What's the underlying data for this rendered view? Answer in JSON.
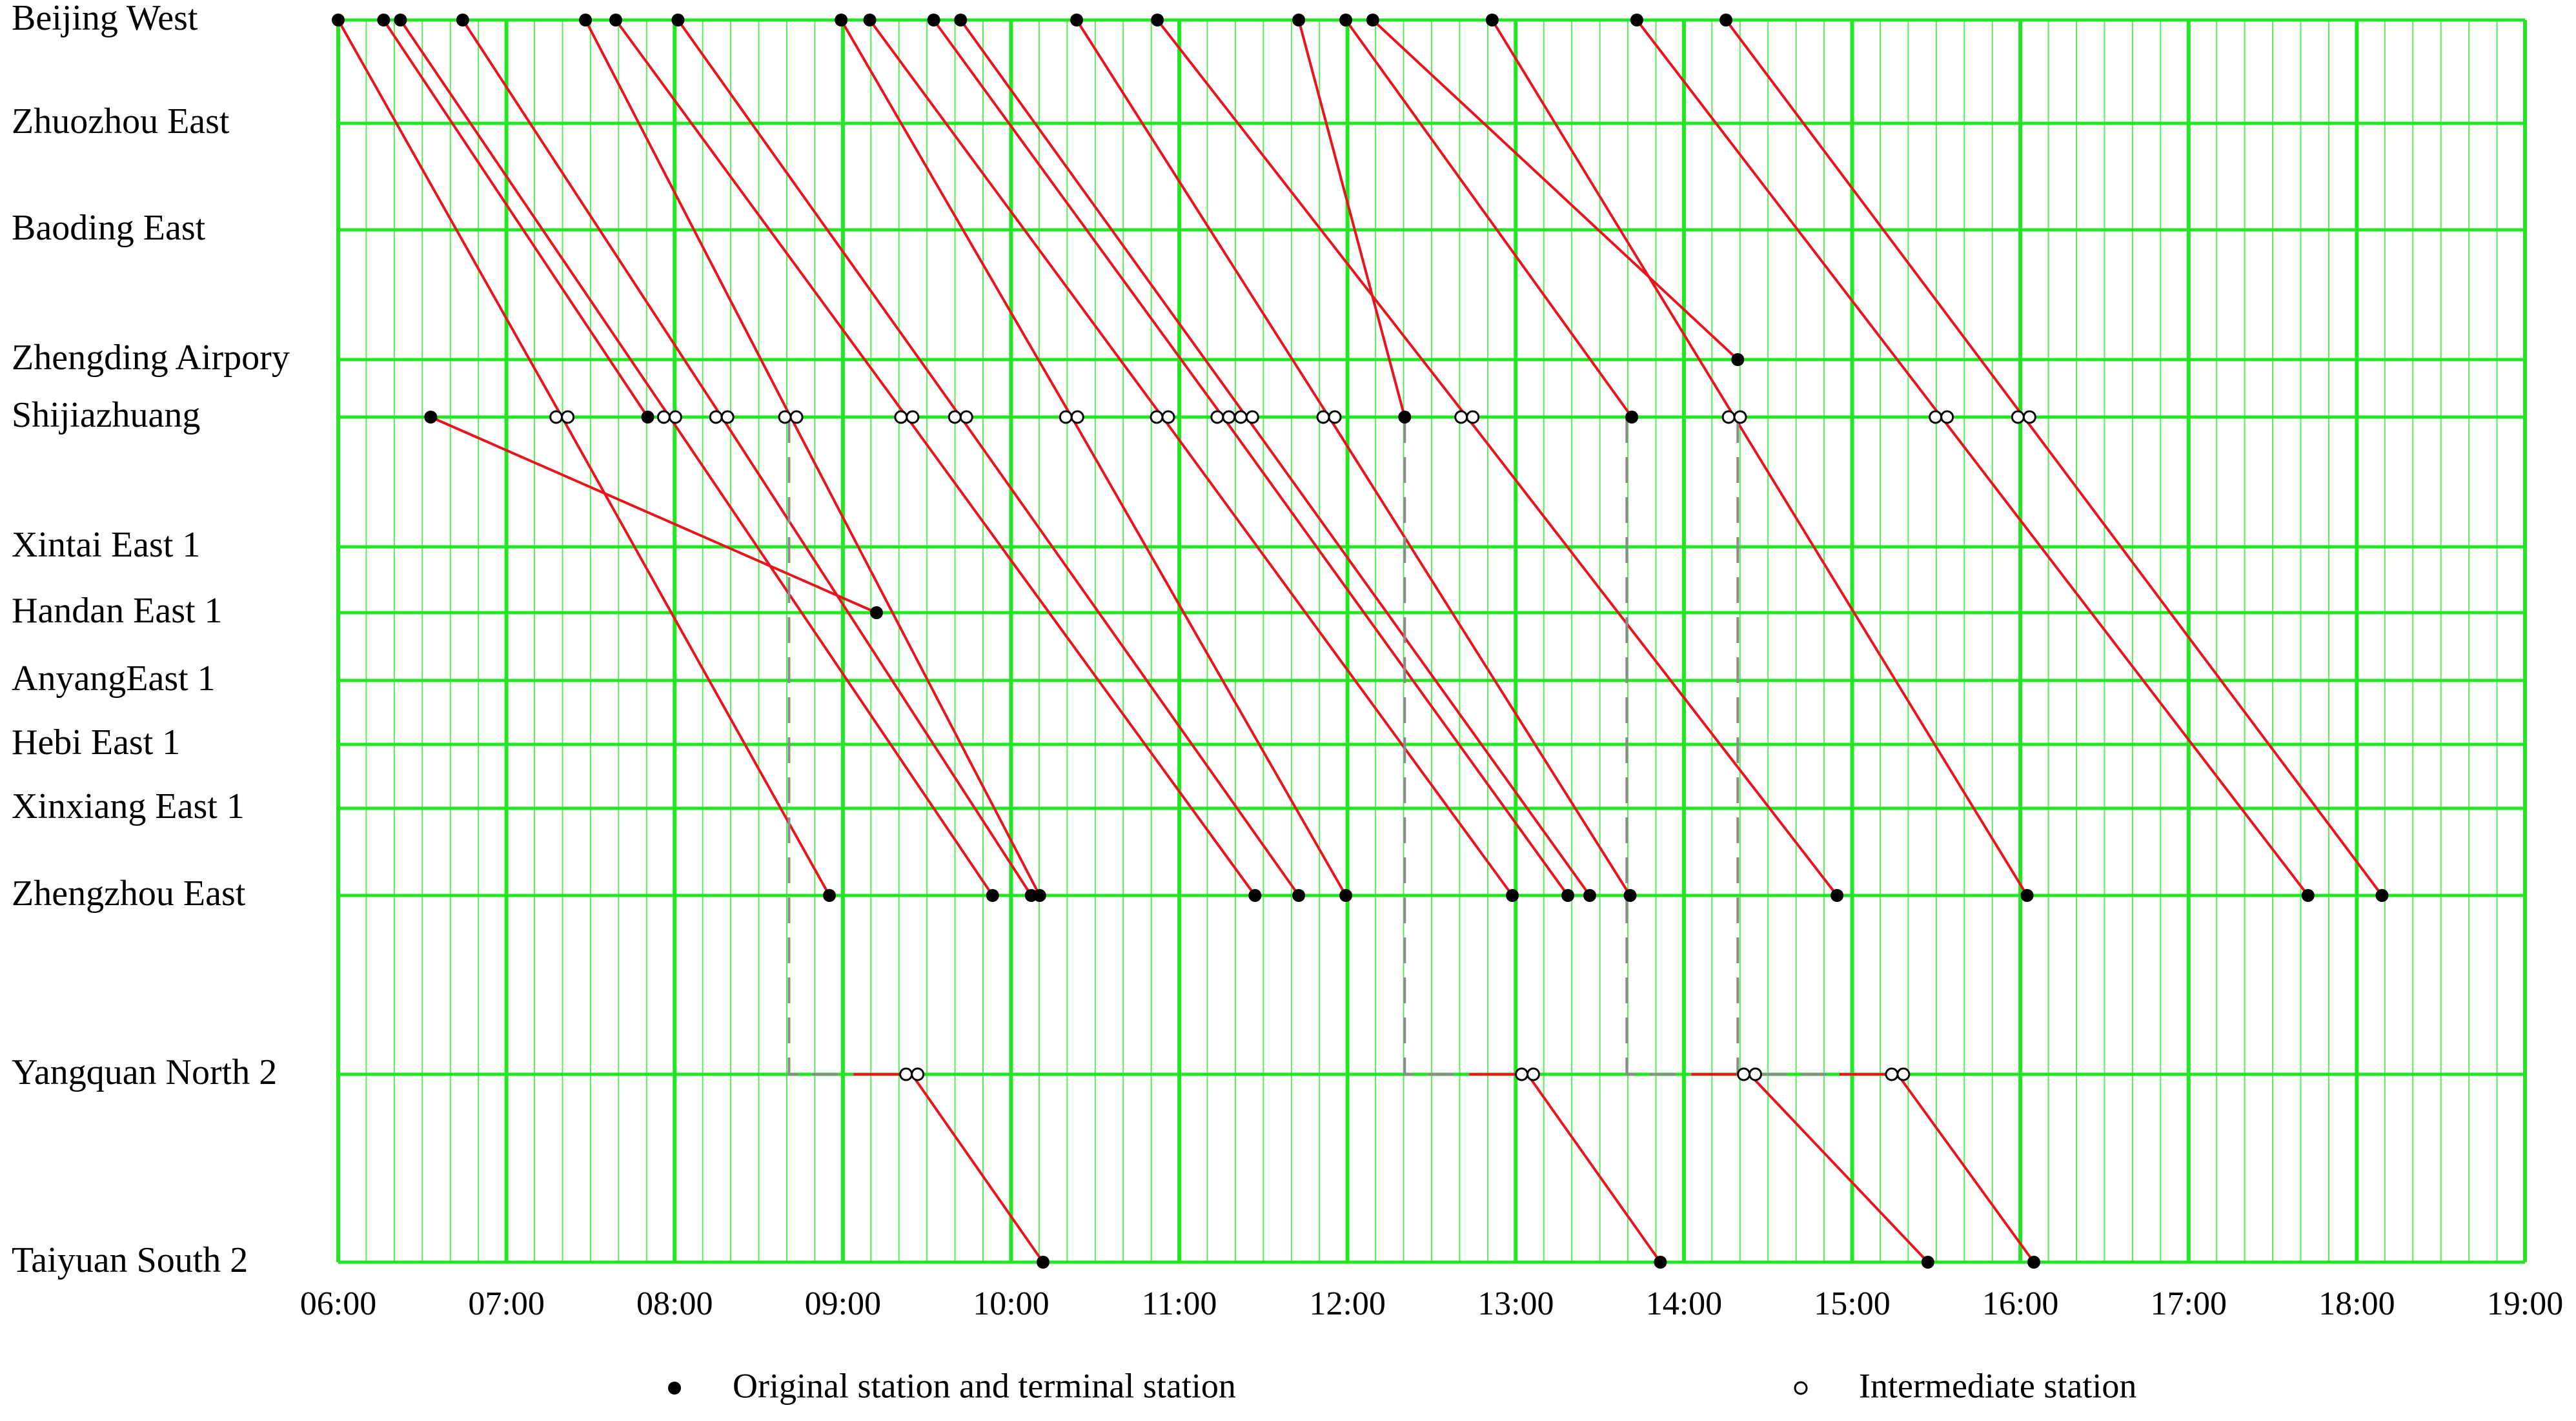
{
  "chart_data": {
    "type": "timetable",
    "stations": [
      "Beijing West",
      "Zhuozhou East",
      "Baoding East",
      "Zhengding Airpory",
      "Shijiazhuang",
      "Xintai East 1",
      "Handan East 1",
      "AnyangEast 1",
      "Hebi East 1",
      "Xinxiang East 1",
      "Zhengzhou East",
      "Yangquan North 2",
      "Taiyuan South 2"
    ],
    "xlim": [
      6,
      19
    ],
    "xticks": [
      {
        "value": 6,
        "label": "06:00"
      },
      {
        "value": 7,
        "label": "07:00"
      },
      {
        "value": 8,
        "label": "08:00"
      },
      {
        "value": 9,
        "label": "09:00"
      },
      {
        "value": 10,
        "label": "10:00"
      },
      {
        "value": 11,
        "label": "11:00"
      },
      {
        "value": 12,
        "label": "12:00"
      },
      {
        "value": 13,
        "label": "13:00"
      },
      {
        "value": 14,
        "label": "14:00"
      },
      {
        "value": 15,
        "label": "15:00"
      },
      {
        "value": 16,
        "label": "16:00"
      },
      {
        "value": 17,
        "label": "17:00"
      },
      {
        "value": 18,
        "label": "18:00"
      },
      {
        "value": 19,
        "label": "19:00"
      }
    ],
    "grid": true,
    "grid_color": "#22e622",
    "line_color": "#e8141e",
    "transfer_color": "#8c8c8c",
    "legend": [
      {
        "name": "Original station and terminal station",
        "marker": "filled"
      },
      {
        "name": "Intermediate station",
        "marker": "open"
      }
    ],
    "trains": [
      {
        "stations": [
          0,
          4,
          10
        ],
        "times": [
          6.0,
          7.33,
          8.92
        ]
      },
      {
        "stations": [
          0,
          4,
          10
        ],
        "times": [
          6.37,
          7.97,
          9.89
        ]
      },
      {
        "stations": [
          0,
          4,
          10
        ],
        "times": [
          6.74,
          8.28,
          10.12
        ]
      },
      {
        "stations": [
          0,
          4,
          10
        ],
        "times": [
          7.47,
          8.69,
          10.17
        ]
      },
      {
        "stations": [
          0,
          4,
          10
        ],
        "times": [
          7.65,
          9.38,
          11.45
        ]
      },
      {
        "stations": [
          0,
          4,
          10
        ],
        "times": [
          8.02,
          9.7,
          11.71
        ]
      },
      {
        "stations": [
          0,
          4,
          10
        ],
        "times": [
          8.99,
          10.36,
          11.99
        ]
      },
      {
        "stations": [
          0,
          4,
          10
        ],
        "times": [
          9.16,
          10.9,
          12.98
        ]
      },
      {
        "stations": [
          0,
          4,
          10
        ],
        "times": [
          9.54,
          11.26,
          13.31
        ]
      },
      {
        "stations": [
          0,
          4,
          10
        ],
        "times": [
          9.7,
          11.4,
          13.44
        ]
      },
      {
        "stations": [
          0,
          4,
          10
        ],
        "times": [
          10.39,
          11.89,
          13.68
        ]
      },
      {
        "stations": [
          0,
          4,
          10
        ],
        "times": [
          10.87,
          12.71,
          14.91
        ]
      },
      {
        "stations": [
          0,
          4,
          10
        ],
        "times": [
          12.86,
          14.3,
          16.04
        ]
      },
      {
        "stations": [
          0,
          4,
          10
        ],
        "times": [
          13.72,
          15.53,
          17.71
        ]
      },
      {
        "stations": [
          0,
          4,
          10
        ],
        "times": [
          14.25,
          16.02,
          18.15
        ]
      },
      {
        "stations": [
          0,
          4
        ],
        "times": [
          11.71,
          12.34
        ]
      },
      {
        "stations": [
          0,
          4
        ],
        "times": [
          11.99,
          13.69
        ]
      },
      {
        "stations": [
          0,
          3
        ],
        "times": [
          12.15,
          14.32
        ]
      },
      {
        "stations": [
          0,
          4
        ],
        "times": [
          6.27,
          7.84
        ]
      },
      {
        "stations": [
          4,
          6
        ],
        "times": [
          6.55,
          9.2
        ]
      },
      {
        "stations": [
          11,
          12
        ],
        "times": [
          9.41,
          10.19
        ],
        "transfer_from": 8.68
      },
      {
        "stations": [
          11,
          12
        ],
        "times": [
          13.07,
          13.86
        ],
        "transfer_from": 12.34
      },
      {
        "stations": [
          11,
          12
        ],
        "times": [
          14.39,
          15.45
        ],
        "transfer_from": 13.66
      },
      {
        "stations": [
          11,
          12
        ],
        "times": [
          15.27,
          16.08
        ],
        "transfer_from": 14.32
      }
    ]
  }
}
